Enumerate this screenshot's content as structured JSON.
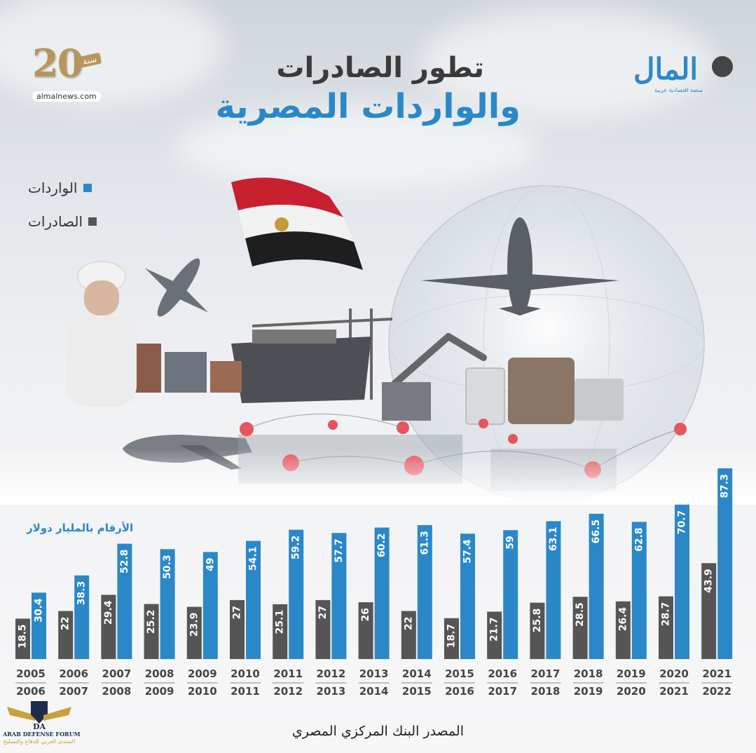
{
  "header": {
    "title_line1": "تطور الصادرات",
    "title_line2": "والواردات المصرية"
  },
  "branding": {
    "anniversary_number": "20",
    "anniversary_word": "سنة",
    "website": "almalnews.com",
    "publisher_name": "المال",
    "publisher_tagline": "منصة اقتصادية عربية"
  },
  "legend": {
    "items": [
      {
        "label": "الواردات",
        "color": "#2a88c8"
      },
      {
        "label": "الصادرات",
        "color": "#555555"
      }
    ]
  },
  "unit_note": "الأرقام بالمليار دولار",
  "source": "المصدر البنك المركزي المصري",
  "watermark": {
    "initials": "DA",
    "name_en": "ARAB DEFENSE FORUM",
    "name_ar": "المنتدى العربي للدفاع والتسليح"
  },
  "chart_data": {
    "type": "bar",
    "categories": [
      [
        "2005",
        "2006"
      ],
      [
        "2006",
        "2007"
      ],
      [
        "2007",
        "2008"
      ],
      [
        "2008",
        "2009"
      ],
      [
        "2009",
        "2010"
      ],
      [
        "2010",
        "2011"
      ],
      [
        "2011",
        "2012"
      ],
      [
        "2012",
        "2013"
      ],
      [
        "2013",
        "2014"
      ],
      [
        "2014",
        "2015"
      ],
      [
        "2015",
        "2016"
      ],
      [
        "2016",
        "2017"
      ],
      [
        "2017",
        "2018"
      ],
      [
        "2018",
        "2019"
      ],
      [
        "2019",
        "2020"
      ],
      [
        "2020",
        "2021"
      ],
      [
        "2021",
        "2022"
      ]
    ],
    "series": [
      {
        "name": "الصادرات",
        "color": "#555555",
        "values": [
          18.5,
          22,
          29.4,
          25.2,
          23.9,
          27,
          25.1,
          27,
          26,
          22,
          18.7,
          21.7,
          25.8,
          28.5,
          26.4,
          28.7,
          43.9
        ]
      },
      {
        "name": "الواردات",
        "color": "#2a88c8",
        "values": [
          30.4,
          38.3,
          52.8,
          50.3,
          49,
          54.1,
          59.2,
          57.7,
          60.2,
          61.3,
          57.4,
          59,
          63.1,
          66.5,
          62.8,
          70.7,
          87.3
        ]
      }
    ],
    "value_labels": {
      "exports": [
        "18.5",
        "22",
        "29.4",
        "25.2",
        "23.9",
        "27",
        "25.1",
        "27",
        "26",
        "22",
        "18.7",
        "21.7",
        "25.8",
        "28.5",
        "26.4",
        "28.7",
        "43.9"
      ],
      "imports": [
        "30.4",
        "38.3",
        "52.8",
        "50.3",
        "49",
        "54.1",
        "59.2",
        "57.7",
        "60.2",
        "61.3",
        "57.4",
        "59",
        "63.1",
        "66.5",
        "62.8",
        "70.7",
        "87.3"
      ]
    },
    "ylim": [
      0,
      90
    ],
    "grid": false,
    "legend_position": "top-left"
  }
}
